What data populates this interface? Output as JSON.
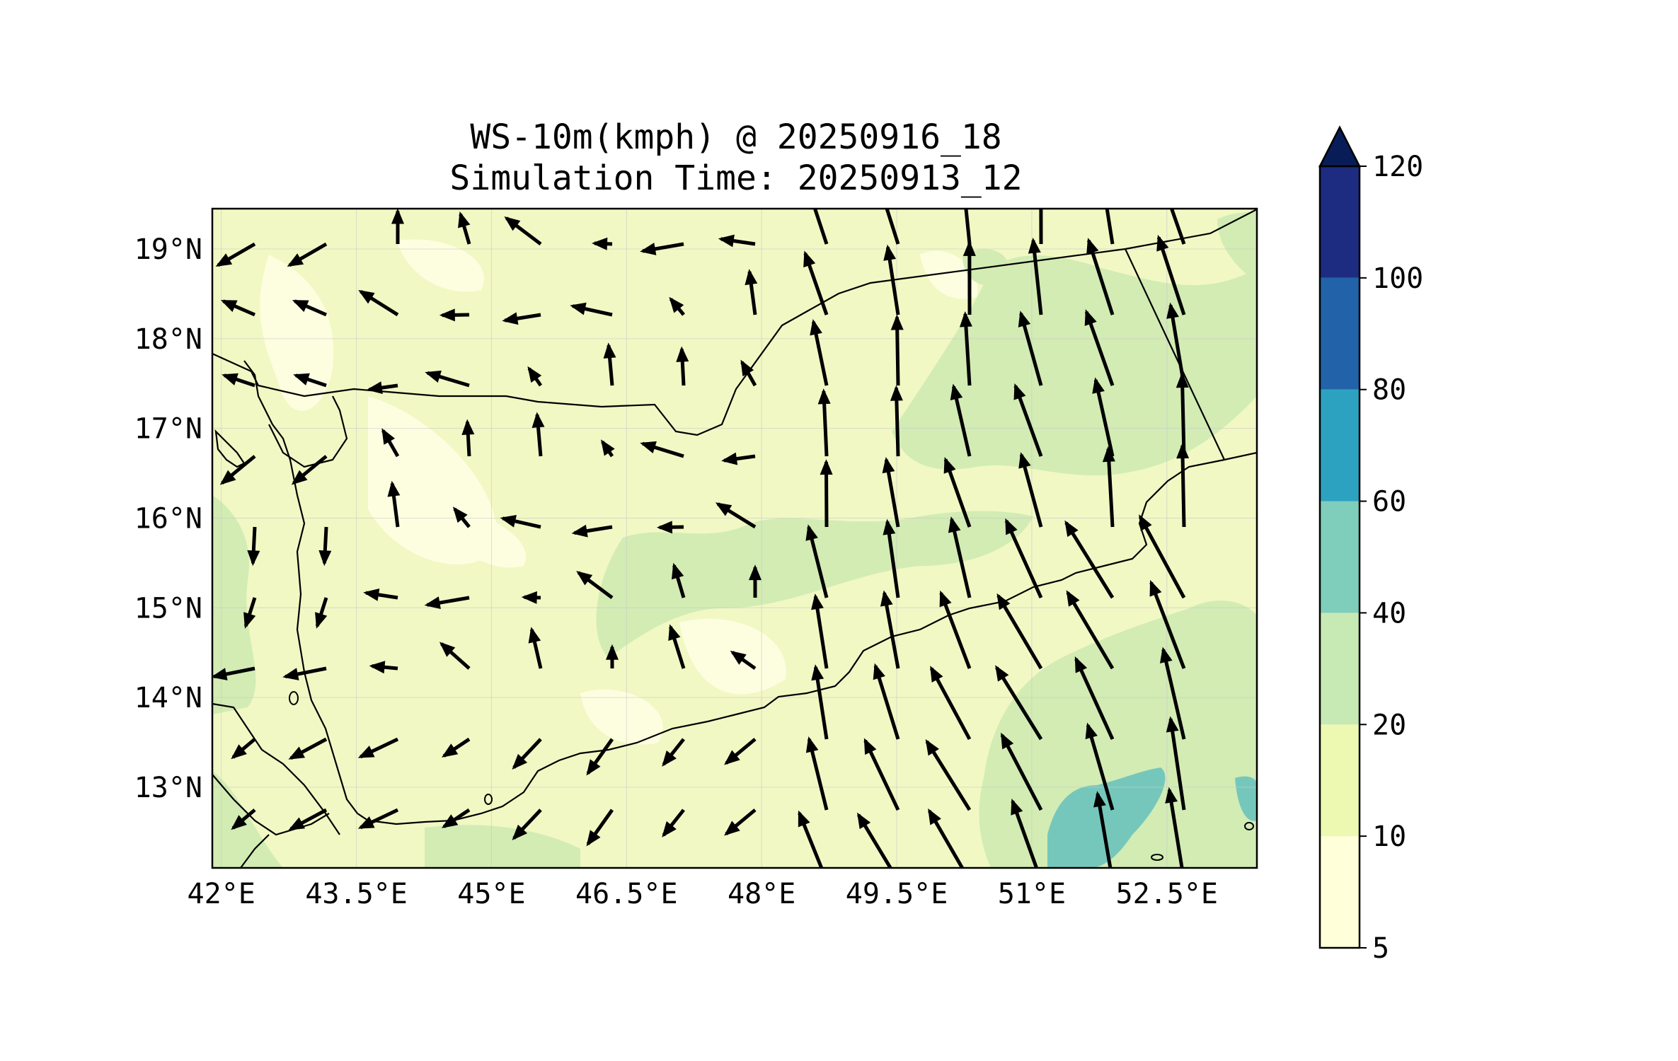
{
  "map": {
    "title_line1": "WS-10m(kmph) @ 20250916_18",
    "title_line2": "Simulation Time: 20250913_12",
    "x_ticks": [
      "42°E",
      "43.5°E",
      "45°E",
      "46.5°E",
      "48°E",
      "49.5°E",
      "51°E",
      "52.5°E"
    ],
    "x_tick_values": [
      42,
      43.5,
      45,
      46.5,
      48,
      49.5,
      51,
      52.5
    ],
    "y_ticks": [
      "19°N",
      "18°N",
      "17°N",
      "16°N",
      "15°N",
      "14°N",
      "13°N"
    ],
    "y_tick_values": [
      19,
      18,
      17,
      16,
      15,
      14,
      13
    ],
    "lon_range": [
      41.9,
      53.5
    ],
    "lat_range": [
      12.1,
      19.45
    ],
    "grid": true,
    "colors": {
      "land_base": "#f1f8c4",
      "light_patch": "#fdfee0",
      "band_20_40": "#d2ecb4",
      "band_40_60": "#76c7bb"
    }
  },
  "colorbar": {
    "levels": [
      "5",
      "10",
      "20",
      "40",
      "60",
      "80",
      "100",
      "120"
    ],
    "colors": [
      "#ffffd9",
      "#edf8b1",
      "#c7e9b4",
      "#7fcdbb",
      "#2ca1c0",
      "#2262a9",
      "#1d2c80"
    ],
    "extend_color": "#081d58",
    "extend": "max"
  }
}
